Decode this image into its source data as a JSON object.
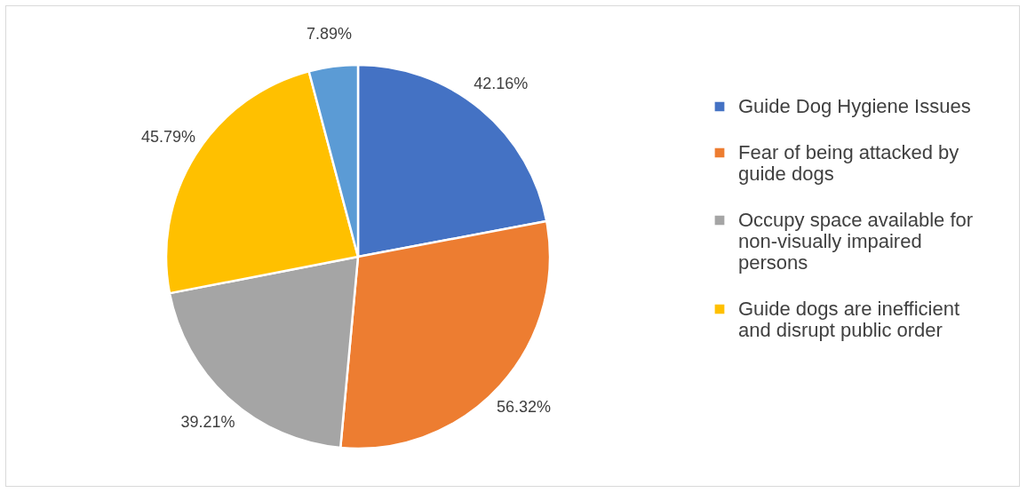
{
  "chart_data": {
    "type": "pie",
    "categories": [
      "Guide Dog Hygiene Issues",
      "Fear of being attacked by guide dogs",
      "Occupy space available for non-visually impaired persons",
      "Guide dogs are inefficient and disrupt public order",
      null
    ],
    "values": [
      42.16,
      56.32,
      39.21,
      45.79,
      7.89
    ],
    "value_labels": [
      "42.16%",
      "56.32%",
      "39.21%",
      "45.79%",
      "7.89%"
    ],
    "colors": [
      "#4472c4",
      "#ed7d31",
      "#a5a5a5",
      "#ffc000",
      "#5b9bd5"
    ],
    "legend": "right"
  }
}
